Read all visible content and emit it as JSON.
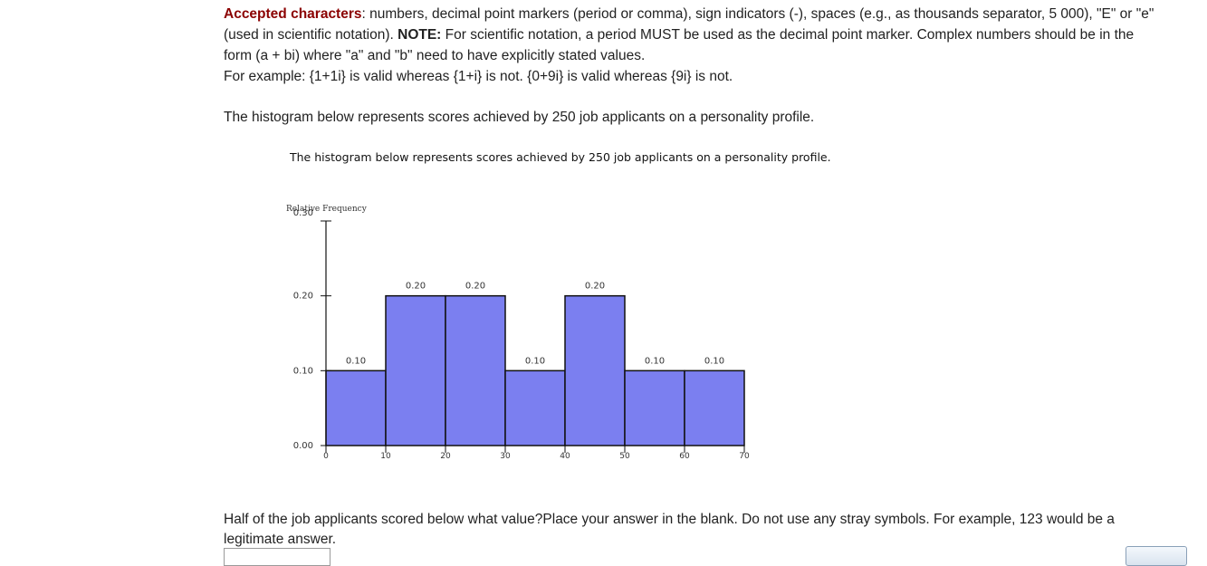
{
  "instructions": {
    "accepted_title": "Accepted characters",
    "accepted_text": ": numbers, decimal point markers (period or comma), sign indicators (-), spaces (e.g., as thousands separator, 5 000), \"E\" or \"e\" (used in scientific notation). ",
    "note_label": "NOTE:",
    "note_text": " For scientific notation, a period MUST be used as the decimal point marker. Complex numbers should be in the form (a + bi) where \"a\" and \"b\" need to have explicitly stated values.",
    "example_text": "For example: {1+1i} is valid whereas {1+i} is not. {0+9i} is valid whereas {9i} is not."
  },
  "intro_text": "The histogram below represents scores achieved by 250 job applicants on a personality profile.",
  "chart_data": {
    "type": "bar",
    "title": "The histogram below represents scores achieved by 250 job applicants on a personality profile.",
    "ylabel": "Relative Frequency",
    "xlabel": "",
    "x_ticks": [
      0,
      10,
      20,
      30,
      40,
      50,
      60,
      70
    ],
    "y_ticks": [
      "0.00",
      "0.10",
      "0.20",
      "0.30"
    ],
    "ylim": [
      0,
      0.3
    ],
    "xlim": [
      0,
      70
    ],
    "bins": [
      {
        "start": 0,
        "end": 10,
        "value": 0.1,
        "label": "0.10"
      },
      {
        "start": 10,
        "end": 20,
        "value": 0.2,
        "label": "0.20"
      },
      {
        "start": 20,
        "end": 30,
        "value": 0.2,
        "label": "0.20"
      },
      {
        "start": 30,
        "end": 40,
        "value": 0.1,
        "label": "0.10"
      },
      {
        "start": 40,
        "end": 50,
        "value": 0.2,
        "label": "0.20"
      },
      {
        "start": 50,
        "end": 60,
        "value": 0.1,
        "label": "0.10"
      },
      {
        "start": 60,
        "end": 70,
        "value": 0.1,
        "label": "0.10"
      }
    ],
    "bar_color": "#7b7ff0",
    "grid": false
  },
  "question_text": "Half of the job applicants scored below what value?Place your answer in the blank. Do not use any stray symbols. For example, 123 would be a legitimate answer.",
  "answer": {
    "value": ""
  },
  "submit": {
    "label": ""
  }
}
